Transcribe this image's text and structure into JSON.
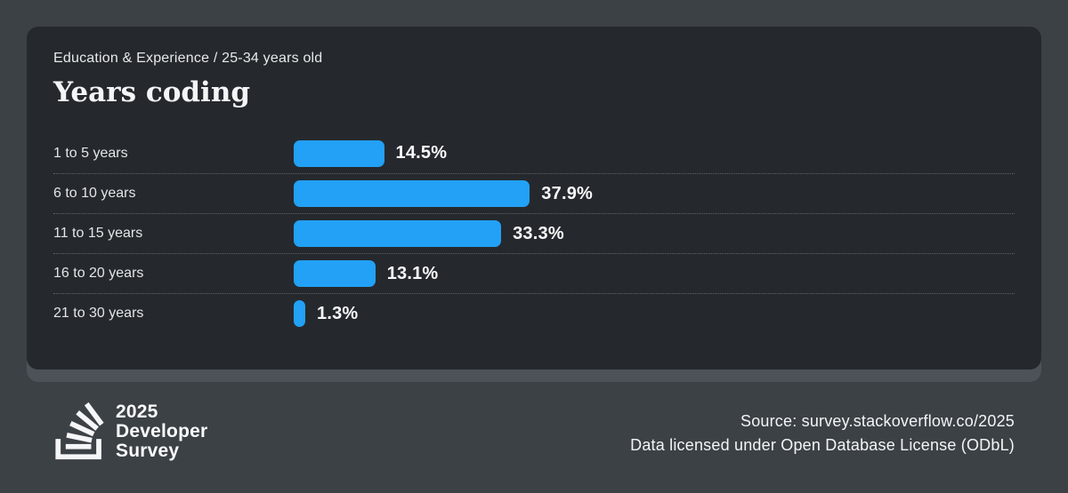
{
  "header": {
    "breadcrumb": "Education & Experience / 25-34 years old",
    "title": "Years coding"
  },
  "chart_data": {
    "type": "bar",
    "orientation": "horizontal",
    "title": "Years coding",
    "subtitle": "Education & Experience / 25-34 years old",
    "categories": [
      "1 to 5 years",
      "6 to 10 years",
      "11 to 15 years",
      "16 to 20 years",
      "21 to 30 years"
    ],
    "values": [
      14.5,
      37.9,
      33.3,
      13.1,
      1.3
    ],
    "value_labels": [
      "14.5%",
      "37.9%",
      "33.3%",
      "13.1%",
      "1.3%"
    ],
    "unit": "%",
    "xlim": [
      0,
      40
    ],
    "grid": false,
    "legend": false,
    "bar_color": "#22a1f6"
  },
  "footer": {
    "logo": {
      "icon": "stackoverflow-logo-icon",
      "lines": [
        "2025",
        "Developer",
        "Survey"
      ]
    },
    "source_line1": "Source: survey.stackoverflow.co/2025",
    "source_line2": "Data licensed under Open Database License (ODbL)"
  },
  "colors": {
    "page_background": "#3c4146",
    "card_background": "#25292d",
    "card_shadow": "#4c5258",
    "bar_blue": "#22a1f6",
    "label_text": "#e3e5e7",
    "value_text": "#f8f9f9"
  }
}
